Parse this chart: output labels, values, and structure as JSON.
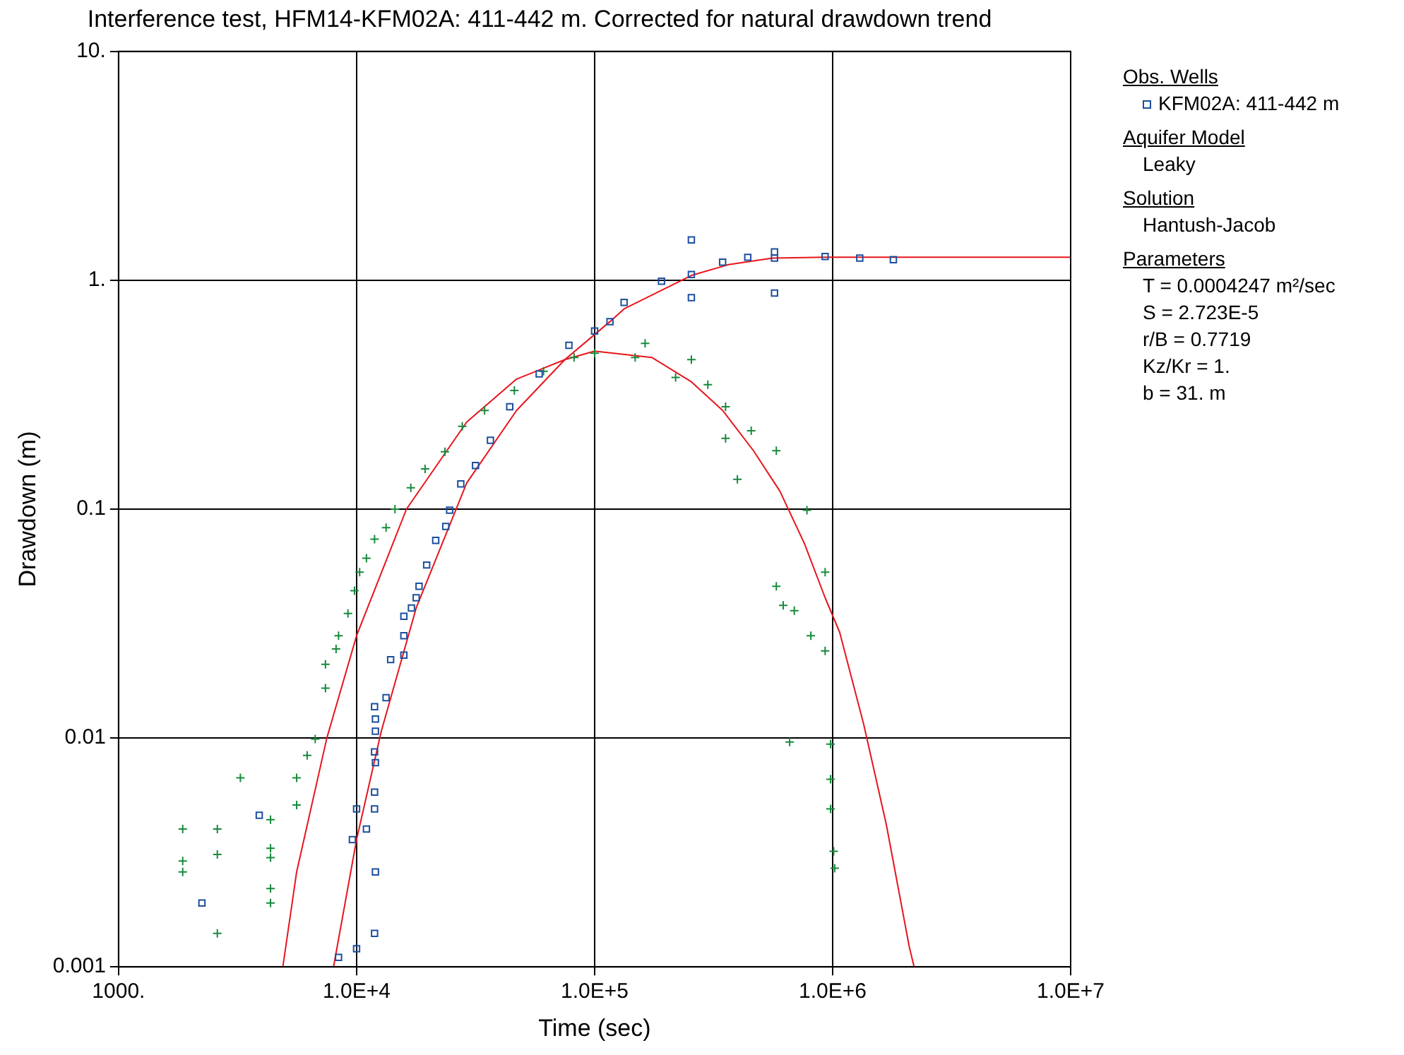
{
  "chart_data": {
    "type": "scatter",
    "title": "Interference test, HFM14-KFM02A: 411-442 m. Corrected for natural drawdown trend",
    "xlabel": "Time (sec)",
    "ylabel": "Drawdown (m)",
    "log": "xy",
    "grid": true,
    "legend": "right",
    "legend_title": "Obs. Wells",
    "xlim": [
      1000,
      10000000
    ],
    "xticks": [
      {
        "value": 1000,
        "label": "1000."
      },
      {
        "value": 10000,
        "label": "1.0E+4"
      },
      {
        "value": 100000,
        "label": "1.0E+5"
      },
      {
        "value": 1000000,
        "label": "1.0E+6"
      },
      {
        "value": 10000000,
        "label": "1.0E+7"
      }
    ],
    "ylim": [
      0.001,
      10
    ],
    "yticks": [
      0.001,
      0.01,
      0.1,
      {
        "value": 1,
        "label": "1."
      },
      {
        "value": 10,
        "label": "10."
      }
    ],
    "series": [
      {
        "name": "KFM02A: 411-442 m",
        "marker": "square",
        "color": "#1b4f9e",
        "x": [
          2240,
          3900,
          8400,
          9600,
          10000,
          10000,
          11000,
          11900,
          12000,
          11900,
          11900,
          12000,
          11900,
          12000,
          12000,
          11900,
          13300,
          13900,
          15800,
          15800,
          15800,
          17000,
          17800,
          18300,
          19700,
          21500,
          23700,
          24600,
          27400,
          31600,
          36500,
          44000,
          58500,
          78000,
          100000,
          116000,
          133000,
          191000,
          255000,
          255000,
          255000,
          345000,
          440000,
          570000,
          570000,
          570000,
          930000,
          1300000,
          1800000
        ],
        "values": [
          0.0019,
          0.0046,
          0.0011,
          0.0036,
          0.0049,
          0.0012,
          0.004,
          0.0014,
          0.0026,
          0.0049,
          0.0058,
          0.0078,
          0.0087,
          0.0107,
          0.0121,
          0.0137,
          0.015,
          0.022,
          0.023,
          0.028,
          0.034,
          0.037,
          0.041,
          0.046,
          0.057,
          0.073,
          0.084,
          0.099,
          0.129,
          0.155,
          0.2,
          0.28,
          0.39,
          0.52,
          0.6,
          0.66,
          0.8,
          0.99,
          1.06,
          1.5,
          0.84,
          1.2,
          1.26,
          1.25,
          1.33,
          0.88,
          1.27,
          1.25,
          1.23
        ]
      },
      {
        "marker": "cross",
        "color": "#178a3c",
        "x": [
          1860,
          1860,
          1860,
          2600,
          2600,
          2600,
          3250,
          4350,
          4350,
          4350,
          4350,
          4350,
          5600,
          5600,
          6200,
          6700,
          7400,
          7400,
          8200,
          8400,
          9200,
          9800,
          10300,
          11000,
          11900,
          13300,
          14500,
          16900,
          19400,
          23500,
          27800,
          34500,
          46000,
          61000,
          82000,
          100000,
          148000,
          163000,
          219000,
          255000,
          299000,
          355000,
          355000,
          398000,
          455000,
          580000,
          580000,
          620000,
          660000,
          690000,
          780000,
          810000,
          930000,
          930000,
          980000,
          980000,
          980000,
          1010000,
          1020000
        ],
        "values": [
          0.004,
          0.0029,
          0.0026,
          0.004,
          0.0031,
          0.0014,
          0.0067,
          0.0044,
          0.0033,
          0.003,
          0.0022,
          0.0019,
          0.0051,
          0.0067,
          0.0084,
          0.0099,
          0.0165,
          0.021,
          0.0245,
          0.028,
          0.035,
          0.044,
          0.053,
          0.061,
          0.074,
          0.083,
          0.1,
          0.124,
          0.15,
          0.178,
          0.23,
          0.27,
          0.33,
          0.4,
          0.46,
          0.48,
          0.46,
          0.53,
          0.376,
          0.45,
          0.35,
          0.28,
          0.204,
          0.135,
          0.22,
          0.18,
          0.046,
          0.038,
          0.0096,
          0.036,
          0.099,
          0.028,
          0.053,
          0.024,
          0.0094,
          0.0066,
          0.0049,
          0.0032,
          0.0027
        ]
      },
      {
        "type": "line",
        "marker": "none",
        "color": "#e8141c",
        "x": [
          8000,
          10000,
          12700,
          17800,
          29000,
          47000,
          75000,
          116000,
          133000,
          255000,
          365000,
          558000,
          930000,
          10000000
        ],
        "values": [
          0.001,
          0.0036,
          0.0107,
          0.037,
          0.13,
          0.27,
          0.45,
          0.66,
          0.75,
          1.05,
          1.17,
          1.25,
          1.26,
          1.26
        ]
      },
      {
        "type": "line",
        "marker": "none",
        "color": "#e8141c",
        "x": [
          4900,
          5600,
          7500,
          10000,
          16200,
          29000,
          47000,
          75000,
          100000,
          174000,
          255000,
          345000,
          465000,
          600000,
          760000,
          930000,
          1070000,
          1350000,
          1680000,
          2100000,
          2200000
        ],
        "values": [
          0.001,
          0.0026,
          0.01,
          0.028,
          0.1,
          0.24,
          0.37,
          0.45,
          0.49,
          0.46,
          0.36,
          0.27,
          0.18,
          0.12,
          0.071,
          0.041,
          0.029,
          0.0115,
          0.0042,
          0.00122,
          0.001
        ]
      }
    ],
    "annotations": [
      "Aquifer Model",
      "Leaky",
      "Solution",
      "Hantush-Jacob",
      "Parameters",
      "T = 0.0004247 m²/sec",
      "S = 2.723E-5",
      "r/B = 0.7719",
      "Kz/Kr = 1.",
      "b = 31. m"
    ]
  }
}
